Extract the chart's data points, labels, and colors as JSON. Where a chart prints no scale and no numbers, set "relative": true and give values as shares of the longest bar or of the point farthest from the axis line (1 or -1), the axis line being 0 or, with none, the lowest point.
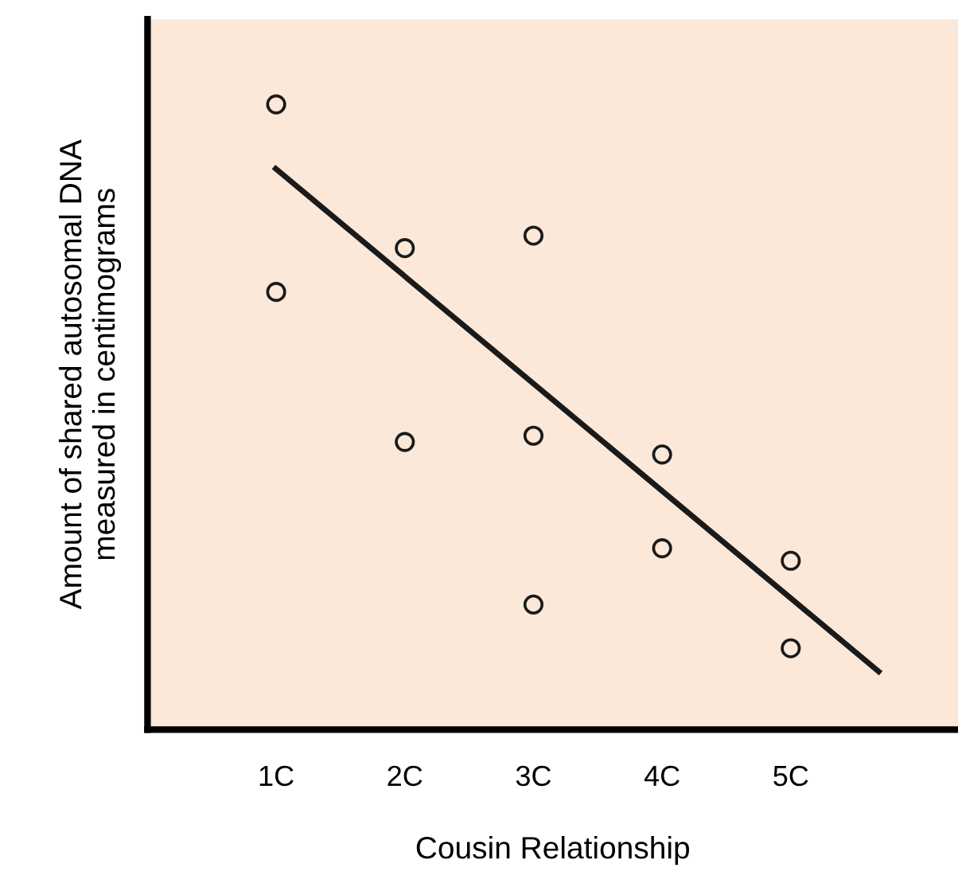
{
  "chart_data": {
    "type": "scatter",
    "relative": true,
    "xlabel": "Cousin Relationship",
    "ylabel": "Amount of shared autosomal DNA\nmeasured in centimograms",
    "xlim": [
      0,
      6.3
    ],
    "xticks": [
      {
        "value": 1,
        "label": "1C"
      },
      {
        "value": 2,
        "label": "2C"
      },
      {
        "value": 3,
        "label": "3C"
      },
      {
        "value": 4,
        "label": "4C"
      },
      {
        "value": 5,
        "label": "5C"
      }
    ],
    "grid": false,
    "legend": false,
    "series": [
      {
        "marker": "circle",
        "color": "#1a1a1a",
        "x": [
          1,
          1,
          2,
          2,
          3,
          3,
          3,
          4,
          4,
          5,
          5
        ],
        "values": [
          1.0,
          0.7,
          0.77,
          0.46,
          0.79,
          0.47,
          0.2,
          0.44,
          0.29,
          0.27,
          0.13
        ]
      },
      {
        "type": "line",
        "marker": "none",
        "color": "#1a1a1a",
        "x": [
          0.98,
          5.7
        ],
        "values": [
          0.9,
          0.09
        ]
      }
    ]
  }
}
